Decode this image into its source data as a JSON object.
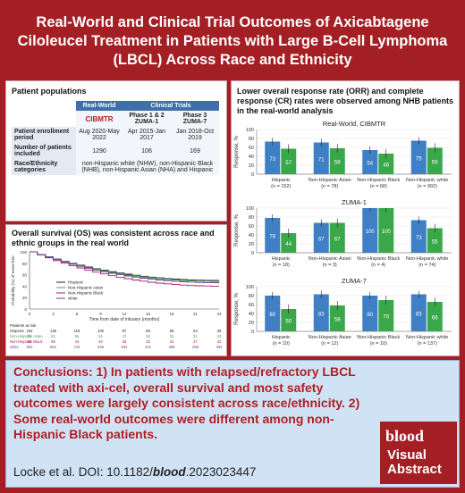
{
  "title": "Real-World and Clinical Trial Outcomes of Axicabtagene Ciloleucel Treatment in Patients with Large B-Cell Lymphoma (LBCL) Across Race and Ethnicity",
  "populations": {
    "heading": "Patient populations",
    "col_real_world": "Real-World",
    "col_clinical_trials": "Clinical Trials",
    "logo_text": "CIBMTR",
    "col_zuma1": "Phase 1 & 2 ZUMA-1",
    "col_zuma7": "Phase 3 ZUMA-7",
    "row1_label": "Patient enrollment period",
    "row1": [
      "Aug 2020-May 2022",
      "Apr 2015-Jan 2017",
      "Jan 2018-Oct 2019"
    ],
    "row2_label": "Number of patients included",
    "row2": [
      "1290",
      "106",
      "169"
    ],
    "row3_label": "Race/Ethnicity categories",
    "row3": "non-Hispanic white (NHW), non-Hispanic Black (NHB), non-Hispanic Asian (NHA) and Hispanic"
  },
  "os": {
    "heading": "Overall survival (OS) was consistent across race and ethnic groups in the real world",
    "ylabel": "Probability (%) of event free",
    "xlabel": "Time from date of infusion (months)",
    "x_ticks": [
      "0",
      "3",
      "6",
      "9",
      "12",
      "15",
      "18",
      "21",
      "24"
    ],
    "y_ticks": [
      "0",
      "20",
      "40",
      "60",
      "80",
      "100"
    ],
    "legend": [
      "Hispanic",
      "Non-Hispanic Asian",
      "Non-Hispanic Black",
      "white"
    ],
    "colors": [
      "#222222",
      "#3aa84a",
      "#b0186a",
      "#6b3fa0"
    ],
    "at_risk_label": "Patients at risk",
    "at_risk": [
      {
        "label": "Hispanic",
        "values": [
          "152",
          "135",
          "119",
          "105",
          "87",
          "68",
          "59",
          "54",
          "39"
        ]
      },
      {
        "label": "Non-Hispanic Asian",
        "values": [
          "78",
          "62",
          "55",
          "51",
          "47",
          "38",
          "35",
          "31",
          "20"
        ]
      },
      {
        "label": "Non-Hispanic Black",
        "values": [
          "68",
          "55",
          "44",
          "40",
          "35",
          "33",
          "31",
          "27",
          "22"
        ]
      },
      {
        "label": "white",
        "values": [
          "992",
          "862",
          "723",
          "638",
          "554",
          "412",
          "398",
          "368",
          "293"
        ]
      }
    ]
  },
  "orr": {
    "heading": "Lower overall response rate (ORR) and complete response (CR) rates were observed among NHB patients in the real-world analysis",
    "ylabel": "Response, %",
    "y_ticks": [
      "0",
      "20",
      "40",
      "60",
      "80",
      "100"
    ]
  },
  "chart_data": [
    {
      "type": "bar",
      "title": "Real-World, CIBMTR",
      "categories": [
        "Hispanic (n = 152)",
        "Non-Hispanic Asian (n = 78)",
        "Non-Hispanic Black (n = 68)",
        "Non-Hispanic white (n = 992)"
      ],
      "series": [
        {
          "values": [
            73,
            71,
            54,
            75
          ],
          "color": "#3f7fc4"
        },
        {
          "values": [
            57,
            58,
            46,
            59
          ],
          "color": "#3aa84a"
        }
      ],
      "ylabel": "Response, %",
      "ylim": [
        0,
        100
      ]
    },
    {
      "type": "bar",
      "title": "ZUMA-1",
      "categories": [
        "Hispanic (n = 18)",
        "Non-Hispanic Asian (n = 3)",
        "Non-Hispanic Black (n = 4)",
        "Non-Hispanic white (n = 74)"
      ],
      "series": [
        {
          "values": [
            78,
            67,
            100,
            73
          ],
          "color": "#3f7fc4"
        },
        {
          "values": [
            44,
            67,
            100,
            55
          ],
          "color": "#3aa84a"
        }
      ],
      "ylabel": "Response, %",
      "ylim": [
        0,
        100
      ]
    },
    {
      "type": "bar",
      "title": "ZUMA-7",
      "categories": [
        "Hispanic (n = 10)",
        "Non-Hispanic Asian (n = 12)",
        "Non-Hispanic Black (n = 10)",
        "Non-Hispanic white (n = 137)"
      ],
      "series": [
        {
          "values": [
            80,
            83,
            80,
            83
          ],
          "color": "#3f7fc4"
        },
        {
          "values": [
            50,
            58,
            70,
            66
          ],
          "color": "#3aa84a"
        }
      ],
      "ylabel": "Response, %",
      "ylim": [
        0,
        100
      ]
    }
  ],
  "conclusions": {
    "text": "Conclusions: 1) In patients with relapsed/refractory LBCL treated with axi-cel, overall survival and most safety outcomes were largely consistent across race/ethnicity. 2) Some real-world outcomes were different among non-Hispanic Black patients.",
    "cite_prefix": "Locke et al. DOI: 10.1182/",
    "cite_journal": "blood",
    "cite_suffix": ".2023023447"
  },
  "badge": {
    "brand": "blood",
    "line1": "Visual",
    "line2": "Abstract"
  }
}
